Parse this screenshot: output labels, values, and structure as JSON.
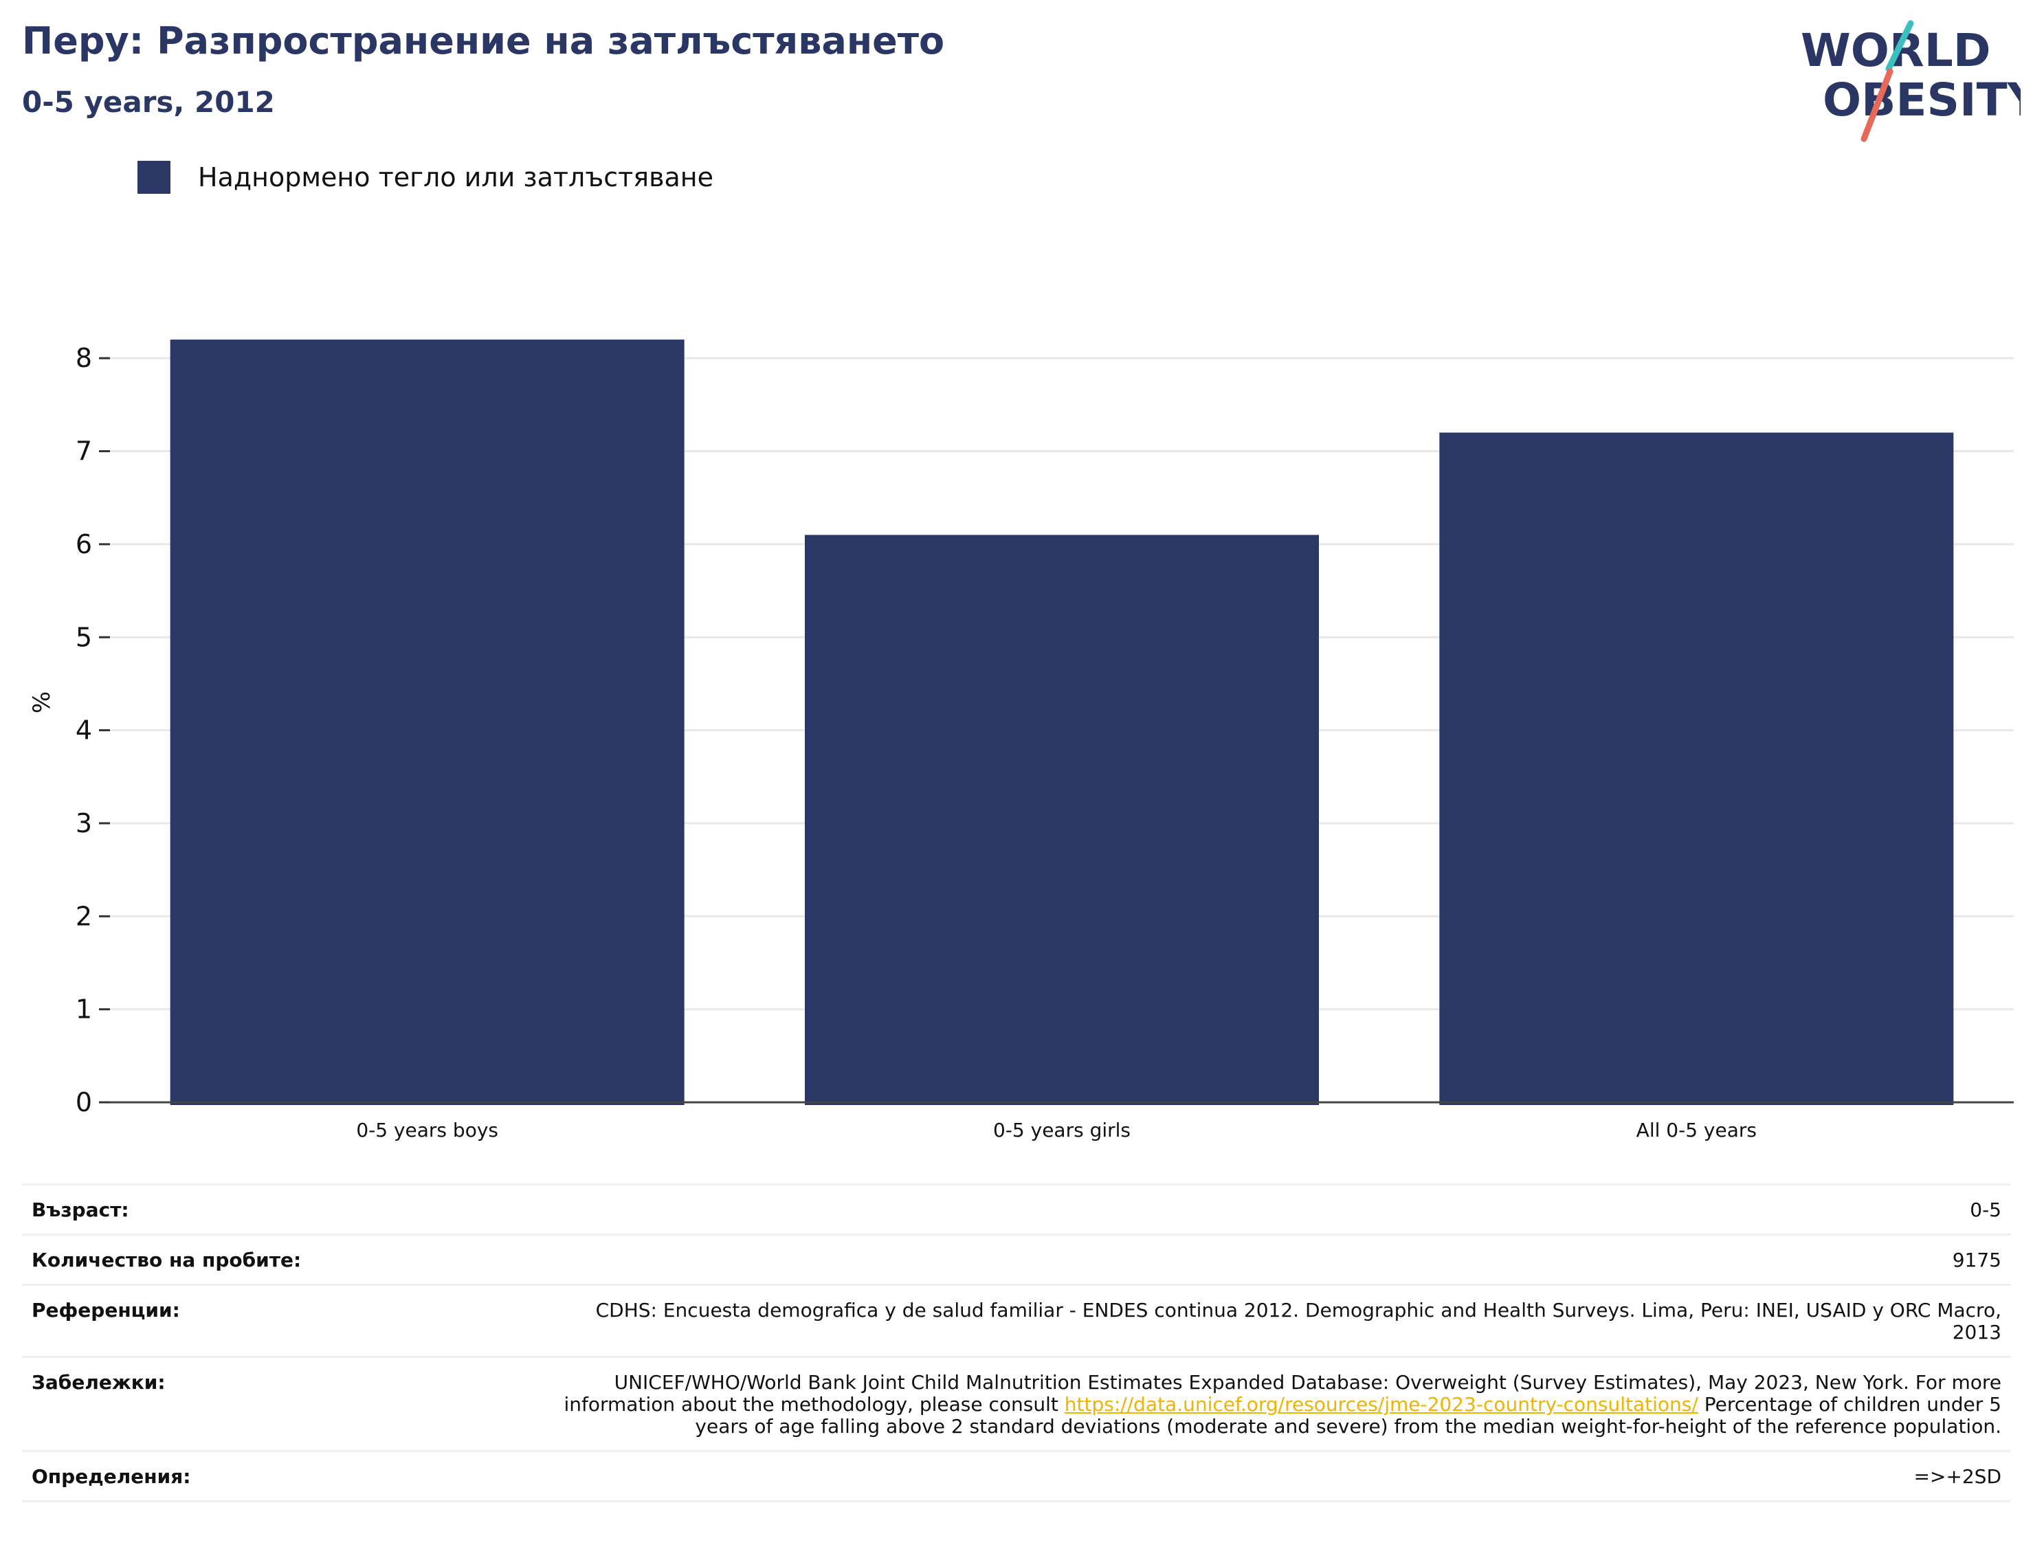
{
  "header": {
    "title": "Перу: Разпространение на затлъстяването",
    "subtitle": "0-5 years, 2012"
  },
  "logo": {
    "line1": "WORLD",
    "line2": "OBESITY"
  },
  "legend": {
    "label": "Наднормено тегло или затлъстяване"
  },
  "colors": {
    "bar": "#2b3764",
    "title": "#2a3663",
    "link": "#f2b300",
    "logo_teal": "#3bbfbf",
    "logo_red": "#e8695a"
  },
  "chart_data": {
    "type": "bar",
    "categories": [
      "0-5 years boys",
      "0-5 years girls",
      "All 0-5 years"
    ],
    "series": [
      {
        "name": "Наднормено тегло или затлъстяване",
        "values": [
          8.2,
          6.1,
          7.2
        ]
      }
    ],
    "ylabel": "%",
    "ylim": [
      0,
      8.6
    ],
    "yticks": [
      0,
      1,
      2,
      3,
      4,
      5,
      6,
      7,
      8
    ],
    "grid": true
  },
  "info": {
    "age_label": "Възраст:",
    "age_value": "0-5",
    "sample_label": "Количество на пробите:",
    "sample_value": "9175",
    "refs_label": "Референции:",
    "refs_value": "CDHS: Encuesta demografica y de salud familiar - ENDES continua 2012. Demographic and Health Surveys. Lima, Peru: INEI, USAID y ORC Macro, 2013",
    "notes_label": "Забележки:",
    "notes_text_before": "UNICEF/WHO/World Bank Joint Child Malnutrition Estimates Expanded Database: Overweight (Survey Estimates), May 2023, New York. For more information about the methodology, please consult ",
    "notes_link": "https://data.unicef.org/resources/jme-2023-country-consultations/",
    "notes_text_after": " Percentage of children under 5 years of age falling above 2 standard deviations (moderate and severe) from the median weight-for-height of the reference population.",
    "defs_label": "Определения:",
    "defs_value": "=>+2SD"
  }
}
